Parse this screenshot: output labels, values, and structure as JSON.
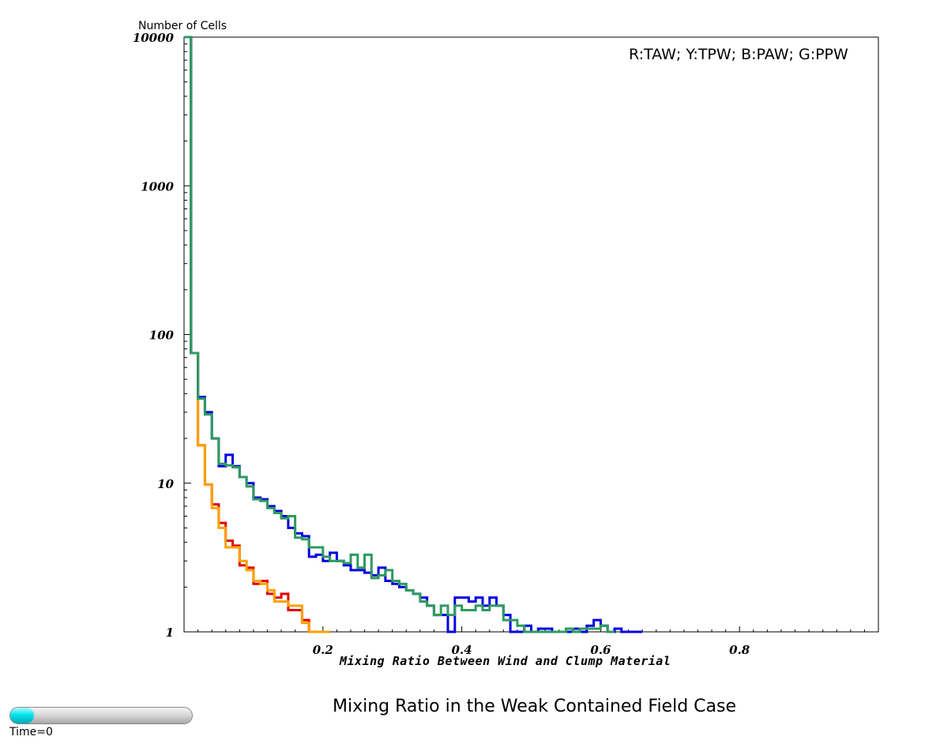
{
  "header": {
    "y_axis_title": "Number of Cells",
    "legend_note": "R:TAW; Y:TPW; B:PAW; G:PPW"
  },
  "footer": {
    "title": "Mixing Ratio in the Weak Contained Field Case",
    "time_label": "Time=0",
    "time_progress": 0.0
  },
  "chart_data": {
    "type": "line",
    "drawstyle": "steps",
    "xlabel": "Mixing Ratio Between Wind and Clump Material",
    "ylabel": "Number of Cells",
    "yscale": "log",
    "xlim": [
      0.0,
      1.0
    ],
    "ylim": [
      1,
      10000
    ],
    "x_ticks": [
      0.2,
      0.4,
      0.6,
      0.8
    ],
    "x_tick_labels": [
      "0.2",
      "0.4",
      "0.6",
      "0.8"
    ],
    "y_ticks": [
      1,
      10,
      100,
      1000,
      10000
    ],
    "y_tick_labels": [
      "1",
      "10",
      "100",
      "1000",
      "10000"
    ],
    "bin_width": 0.01,
    "grid": false,
    "series": [
      {
        "name": "R",
        "color": "#e00000",
        "x": [
          0.0,
          0.01,
          0.02,
          0.03,
          0.04,
          0.05,
          0.06,
          0.07,
          0.08,
          0.09,
          0.1,
          0.11,
          0.12,
          0.13,
          0.14,
          0.15,
          0.16,
          0.17,
          0.18,
          0.19,
          0.2
        ],
        "y": [
          10000,
          75,
          18,
          9.8,
          7.2,
          5.4,
          4.1,
          3.8,
          2.8,
          2.7,
          2.1,
          2.2,
          1.8,
          1.7,
          1.8,
          1.4,
          1.4,
          1.2,
          1,
          1,
          1
        ]
      },
      {
        "name": "Y",
        "color": "#ffa000",
        "x": [
          0.0,
          0.01,
          0.02,
          0.03,
          0.04,
          0.05,
          0.06,
          0.07,
          0.08,
          0.09,
          0.1,
          0.11,
          0.12,
          0.13,
          0.14,
          0.15,
          0.16,
          0.17,
          0.18,
          0.19,
          0.2
        ],
        "y": [
          10000,
          75,
          18,
          9.8,
          6.8,
          5.0,
          3.7,
          3.7,
          3.0,
          2.6,
          2.2,
          2.1,
          1.9,
          1.6,
          1.6,
          1.5,
          1.5,
          1.15,
          1,
          1,
          1
        ]
      },
      {
        "name": "B",
        "color": "#0000e0",
        "x": [
          0.0,
          0.01,
          0.02,
          0.03,
          0.04,
          0.05,
          0.06,
          0.07,
          0.08,
          0.09,
          0.1,
          0.11,
          0.12,
          0.13,
          0.14,
          0.15,
          0.16,
          0.17,
          0.18,
          0.19,
          0.2,
          0.21,
          0.22,
          0.23,
          0.24,
          0.25,
          0.26,
          0.27,
          0.28,
          0.29,
          0.3,
          0.31,
          0.32,
          0.33,
          0.34,
          0.35,
          0.36,
          0.37,
          0.38,
          0.39,
          0.4,
          0.41,
          0.42,
          0.43,
          0.44,
          0.45,
          0.46,
          0.47,
          0.48,
          0.49,
          0.5,
          0.51,
          0.52,
          0.53,
          0.54,
          0.55,
          0.56,
          0.57,
          0.58,
          0.59,
          0.6,
          0.61,
          0.62,
          0.63,
          0.64,
          0.65
        ],
        "y": [
          10000,
          75,
          38,
          30,
          20,
          13,
          15.5,
          13,
          11,
          10,
          8.0,
          7.8,
          7.0,
          6.5,
          6.0,
          5.0,
          4.6,
          4.4,
          3.2,
          3.3,
          3.0,
          3.4,
          3.0,
          2.8,
          2.6,
          2.6,
          2.5,
          2.4,
          2.7,
          2.2,
          2.1,
          2.0,
          1.9,
          1.8,
          1.7,
          1.5,
          1.3,
          1.3,
          1.0,
          1.7,
          1.7,
          1.6,
          1.7,
          1.5,
          1.7,
          1.5,
          1.3,
          1.0,
          1.0,
          1.1,
          1.0,
          1.05,
          1.05,
          1.0,
          1.0,
          1.0,
          1.05,
          1.0,
          1.1,
          1.2,
          1.1,
          1.0,
          1.05,
          1.0,
          1.0,
          1.0
        ]
      },
      {
        "name": "G",
        "color": "#2e9a60",
        "x": [
          0.0,
          0.01,
          0.02,
          0.03,
          0.04,
          0.05,
          0.06,
          0.07,
          0.08,
          0.09,
          0.1,
          0.11,
          0.12,
          0.13,
          0.14,
          0.15,
          0.16,
          0.17,
          0.18,
          0.19,
          0.2,
          0.21,
          0.22,
          0.23,
          0.24,
          0.25,
          0.26,
          0.27,
          0.28,
          0.29,
          0.3,
          0.31,
          0.32,
          0.33,
          0.34,
          0.35,
          0.36,
          0.37,
          0.38,
          0.39,
          0.4,
          0.41,
          0.42,
          0.43,
          0.44,
          0.45,
          0.46,
          0.47,
          0.48,
          0.49,
          0.5,
          0.51,
          0.52,
          0.53,
          0.54,
          0.55,
          0.56,
          0.57,
          0.58,
          0.59,
          0.6,
          0.61
        ],
        "y": [
          10000,
          75,
          37,
          29,
          20,
          13.5,
          13.2,
          12.8,
          11,
          9.5,
          7.8,
          7.6,
          6.8,
          6.3,
          5.8,
          6.0,
          4.3,
          4.2,
          3.7,
          3.7,
          3.2,
          3.0,
          3.0,
          2.9,
          3.3,
          2.7,
          3.3,
          2.3,
          2.4,
          2.6,
          2.2,
          2.1,
          1.9,
          1.8,
          1.6,
          1.5,
          1.3,
          1.5,
          1.3,
          1.5,
          1.4,
          1.4,
          1.5,
          1.4,
          1.5,
          1.5,
          1.2,
          1.2,
          1.1,
          1.0,
          1.0,
          1.0,
          1.0,
          1.0,
          1.0,
          1.05,
          1.0,
          1.05,
          1.05,
          1.05,
          1.1,
          1.0
        ]
      }
    ]
  }
}
